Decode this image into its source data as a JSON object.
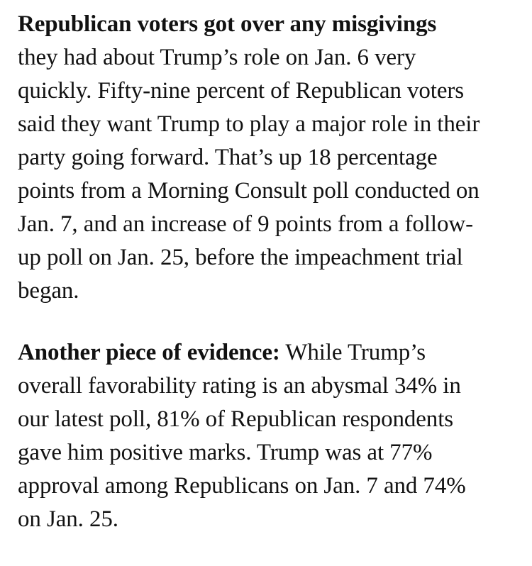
{
  "page": {
    "background_color": "#ffffff",
    "text_color": "#121212"
  },
  "article": {
    "paragraphs": [
      {
        "lines": [
          {
            "bold": "Republican voters got over any misgivings"
          },
          {
            "text": "they had about Trump’s role on Jan. 6 very"
          },
          {
            "text": "quickly. Fifty-nine percent of Republican voters"
          },
          {
            "text": "said they want Trump to play a major role in their"
          },
          {
            "text": "party going forward. That’s up 18 percentage"
          },
          {
            "text": "points from a Morning Consult poll conducted on"
          },
          {
            "text": "Jan. 7, and an increase of 9 points from a follow-"
          },
          {
            "text": "up poll on Jan. 25, before the impeachment trial"
          },
          {
            "text": "began."
          }
        ]
      },
      {
        "lines": [
          {
            "bold": "Another piece of evidence:",
            "text": " While Trump’s"
          },
          {
            "text": "overall favorability rating is an abysmal 34% in"
          },
          {
            "text": "our latest poll, 81% of Republican respondents"
          },
          {
            "text": "gave him positive marks. Trump was at 77%"
          },
          {
            "text": "approval among Republicans on Jan. 7 and 74%"
          },
          {
            "text": "on Jan. 25."
          }
        ]
      }
    ]
  }
}
